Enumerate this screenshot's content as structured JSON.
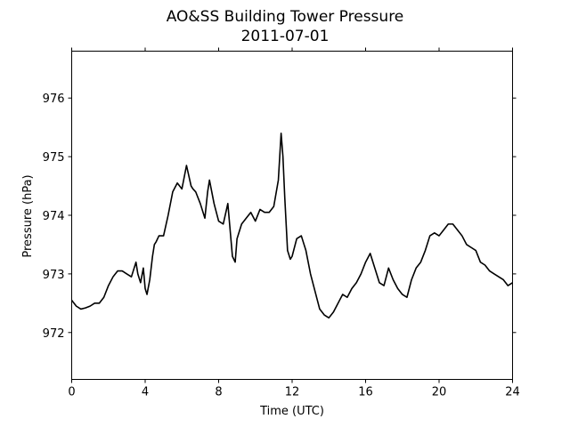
{
  "chart_data": {
    "type": "line",
    "title": "AO&SS Building Tower Pressure",
    "subtitle": "2011-07-01",
    "xlabel": "Time (UTC)",
    "ylabel": "Pressure (hPa)",
    "xlim": [
      0,
      24
    ],
    "ylim": [
      971.2,
      976.8
    ],
    "xticks": [
      0,
      4,
      8,
      12,
      16,
      20,
      24
    ],
    "yticks": [
      972,
      973,
      974,
      975,
      976
    ],
    "grid": false,
    "color": "#000000",
    "series": [
      {
        "x": [
          0,
          0.25,
          0.5,
          0.75,
          1.0,
          1.25,
          1.5,
          1.75,
          2.0,
          2.25,
          2.5,
          2.75,
          3.0,
          3.25,
          3.5,
          3.6,
          3.75,
          3.9,
          4.0,
          4.1,
          4.25,
          4.4,
          4.5,
          4.6,
          4.75,
          5.0,
          5.25,
          5.5,
          5.75,
          6.0,
          6.25,
          6.5,
          6.6,
          6.75,
          7.0,
          7.25,
          7.4,
          7.5,
          7.75,
          8.0,
          8.25,
          8.5,
          8.75,
          8.9,
          9.0,
          9.25,
          9.5,
          9.75,
          10.0,
          10.25,
          10.5,
          10.75,
          11.0,
          11.25,
          11.4,
          11.5,
          11.6,
          11.75,
          11.9,
          12.0,
          12.25,
          12.5,
          12.75,
          13.0,
          13.25,
          13.5,
          13.75,
          14.0,
          14.25,
          14.5,
          14.75,
          15.0,
          15.25,
          15.5,
          15.75,
          16.0,
          16.25,
          16.5,
          16.75,
          17.0,
          17.25,
          17.5,
          17.75,
          18.0,
          18.25,
          18.5,
          18.75,
          19.0,
          19.25,
          19.5,
          19.75,
          20.0,
          20.25,
          20.5,
          20.75,
          21.0,
          21.25,
          21.5,
          21.75,
          22.0,
          22.25,
          22.5,
          22.75,
          23.0,
          23.25,
          23.5,
          23.75,
          24.0
        ],
        "y": [
          972.55,
          972.45,
          972.4,
          972.42,
          972.45,
          972.5,
          972.5,
          972.6,
          972.8,
          972.95,
          973.05,
          973.05,
          973.0,
          972.95,
          973.2,
          973.0,
          972.85,
          973.1,
          972.75,
          972.65,
          972.9,
          973.3,
          973.5,
          973.55,
          973.65,
          973.65,
          974.0,
          974.4,
          974.55,
          974.45,
          974.85,
          974.5,
          974.45,
          974.4,
          974.2,
          973.95,
          974.4,
          974.6,
          974.2,
          973.9,
          973.85,
          974.2,
          973.3,
          973.2,
          973.6,
          973.85,
          973.95,
          974.05,
          973.9,
          974.1,
          974.05,
          974.05,
          974.15,
          974.6,
          975.4,
          975.0,
          974.3,
          973.4,
          973.25,
          973.3,
          973.6,
          973.65,
          973.4,
          973.0,
          972.7,
          972.4,
          972.3,
          972.25,
          972.35,
          972.5,
          972.65,
          972.6,
          972.75,
          972.85,
          973.0,
          973.2,
          973.35,
          973.1,
          972.85,
          972.8,
          973.1,
          972.9,
          972.75,
          972.65,
          972.6,
          972.9,
          973.1,
          973.2,
          973.4,
          973.65,
          973.7,
          973.65,
          973.75,
          973.85,
          973.85,
          973.75,
          973.65,
          973.5,
          973.45,
          973.4,
          973.2,
          973.15,
          973.05,
          973.0,
          972.95,
          972.9,
          972.8,
          972.85
        ]
      }
    ]
  }
}
